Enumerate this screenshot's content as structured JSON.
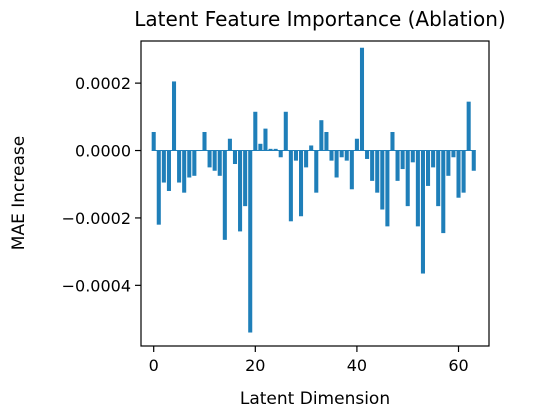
{
  "colors": {
    "bar": "#1f7fb9",
    "axes": "#000000",
    "background": "#ffffff"
  },
  "chart_data": {
    "type": "bar",
    "title": "Latent Feature Importance (Ablation)",
    "xlabel": "Latent Dimension",
    "ylabel": "MAE Increase",
    "xlim": [
      -2.5,
      66.0
    ],
    "ylim": [
      -0.00058,
      0.000325
    ],
    "xticks": [
      0,
      20,
      40,
      60
    ],
    "xtick_labels": [
      "0",
      "20",
      "40",
      "60"
    ],
    "yticks": [
      -0.0004,
      -0.0002,
      0.0,
      0.0002
    ],
    "ytick_labels": [
      "−0.0004",
      "−0.0002",
      "0.0000",
      "0.0002"
    ],
    "grid": false,
    "x": [
      0,
      1,
      2,
      3,
      4,
      5,
      6,
      7,
      8,
      9,
      10,
      11,
      12,
      13,
      14,
      15,
      16,
      17,
      18,
      19,
      20,
      21,
      22,
      23,
      24,
      25,
      26,
      27,
      28,
      29,
      30,
      31,
      32,
      33,
      34,
      35,
      36,
      37,
      38,
      39,
      40,
      41,
      42,
      43,
      44,
      45,
      46,
      47,
      48,
      49,
      50,
      51,
      52,
      53,
      54,
      55,
      56,
      57,
      58,
      59,
      60,
      61,
      62,
      63
    ],
    "values": [
      5.5e-05,
      -0.00022,
      -9.5e-05,
      -0.00012,
      0.000205,
      -9.5e-05,
      -0.000125,
      -8e-05,
      -7.5e-05,
      0.0,
      5.5e-05,
      -5e-05,
      -6e-05,
      -7.5e-05,
      -0.000265,
      3.5e-05,
      -4e-05,
      -0.00024,
      -0.000165,
      -0.00054,
      0.000115,
      2e-05,
      6.5e-05,
      5e-06,
      5e-06,
      -2e-05,
      0.000115,
      -0.00021,
      -3e-05,
      -0.000195,
      -5e-05,
      1.5e-05,
      -0.000125,
      9e-05,
      5.5e-05,
      -3e-05,
      -8e-05,
      -2e-05,
      -3e-05,
      -0.000115,
      3.5e-05,
      0.000305,
      -2.5e-05,
      -9e-05,
      -0.000125,
      -0.000175,
      -0.000225,
      5.5e-05,
      -9e-05,
      -5.5e-05,
      -0.000165,
      -3.5e-05,
      -0.000225,
      -0.000365,
      -0.000105,
      -5e-05,
      -0.000165,
      -0.000245,
      -7.5e-05,
      -2e-05,
      -0.00014,
      -0.000125,
      0.000145,
      -6e-05
    ]
  }
}
